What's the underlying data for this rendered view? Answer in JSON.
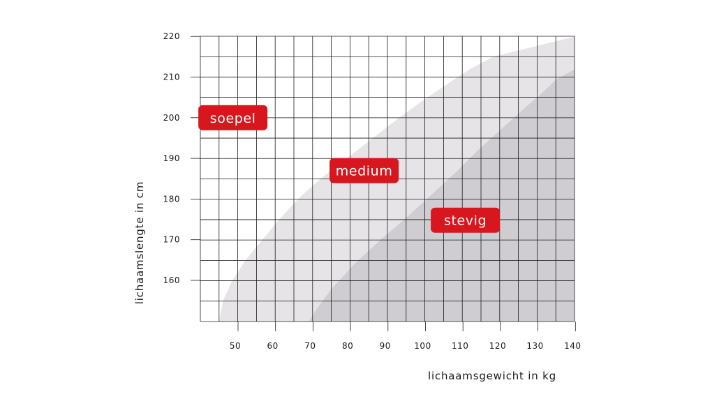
{
  "chart_data": {
    "type": "area",
    "xlabel": "lichaamsgewicht in kg",
    "ylabel": "lichaamslengte in cm",
    "xlim": [
      40,
      140
    ],
    "ylim": [
      150,
      220
    ],
    "x_ticks": [
      50,
      60,
      70,
      80,
      90,
      100,
      110,
      120,
      130,
      140
    ],
    "y_ticks": [
      160,
      170,
      180,
      190,
      200,
      210,
      220
    ],
    "grid": true,
    "zones": [
      {
        "name": "soepel",
        "color": "#ffffff",
        "label_position": {
          "x": 45,
          "y": 200
        },
        "boundary": []
      },
      {
        "name": "medium",
        "color": "#e6e4e7",
        "label_position": {
          "x": 80,
          "y": 187
        },
        "boundary": [
          [
            45,
            150
          ],
          [
            46,
            155
          ],
          [
            48.5,
            160
          ],
          [
            52,
            165
          ],
          [
            56.5,
            170
          ],
          [
            61,
            175
          ],
          [
            66,
            180
          ],
          [
            72,
            185
          ],
          [
            79,
            190
          ],
          [
            86,
            195
          ],
          [
            93,
            200
          ],
          [
            100.5,
            205
          ],
          [
            107,
            209
          ],
          [
            112,
            212
          ],
          [
            118,
            215
          ],
          [
            140,
            220
          ]
        ]
      },
      {
        "name": "stevig",
        "color": "#cfcdd1",
        "label_position": {
          "x": 107,
          "y": 174.8
        },
        "boundary": [
          [
            69,
            150
          ],
          [
            71,
            153
          ],
          [
            75,
            158
          ],
          [
            81,
            164
          ],
          [
            88,
            170
          ],
          [
            95,
            175.5
          ],
          [
            101.5,
            181
          ],
          [
            108,
            186.5
          ],
          [
            114,
            192
          ],
          [
            120,
            197
          ],
          [
            126,
            202
          ],
          [
            131,
            206
          ],
          [
            135,
            209.5
          ],
          [
            140,
            212
          ]
        ]
      }
    ],
    "colors": {
      "label_background": "#d7161d",
      "grid": "#1a1a1a"
    }
  }
}
